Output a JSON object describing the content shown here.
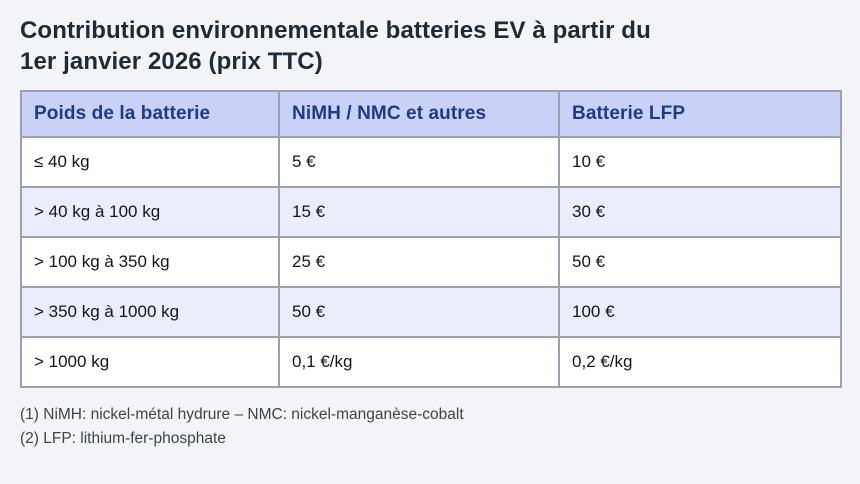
{
  "header": {
    "title": "Contribution environnementale batteries EV à partir du 1er janvier 2026 (prix TTC)",
    "title_lines": [
      "Contribution environnementale batteries EV à partir du",
      "1er janvier 2026 (prix TTC)"
    ]
  },
  "table": {
    "columns": [
      "Poids de la batterie",
      "NiMH / NMC et autres",
      "Batterie LFP"
    ],
    "rows": [
      [
        "≤ 40 kg",
        "5 €",
        "10 €"
      ],
      [
        "> 40 kg à 100 kg",
        "15 €",
        "30 €"
      ],
      [
        "> 100 kg à 350 kg",
        "25 €",
        "50 €"
      ],
      [
        "> 350 kg à 1000 kg",
        "50 €",
        "100 €"
      ],
      [
        "> 1000 kg",
        "0,1 €/kg",
        "0,2 €/kg"
      ]
    ]
  },
  "footnotes": [
    "(1) NiMH: nickel-métal hydrure – NMC: nickel-manganèse-cobalt",
    "(2) LFP: lithium-fer-phosphate"
  ],
  "colors": {
    "page_background": "#f2f4f7",
    "title_text": "#1f2a37",
    "header_background": "#c9d2f6",
    "header_text": "#1e3a8a",
    "row_alt_background": "#eaeefb",
    "row_background": "#ffffff",
    "cell_text": "#121519",
    "border": "#9ba1b2",
    "footnote_text": "#3e444c"
  }
}
